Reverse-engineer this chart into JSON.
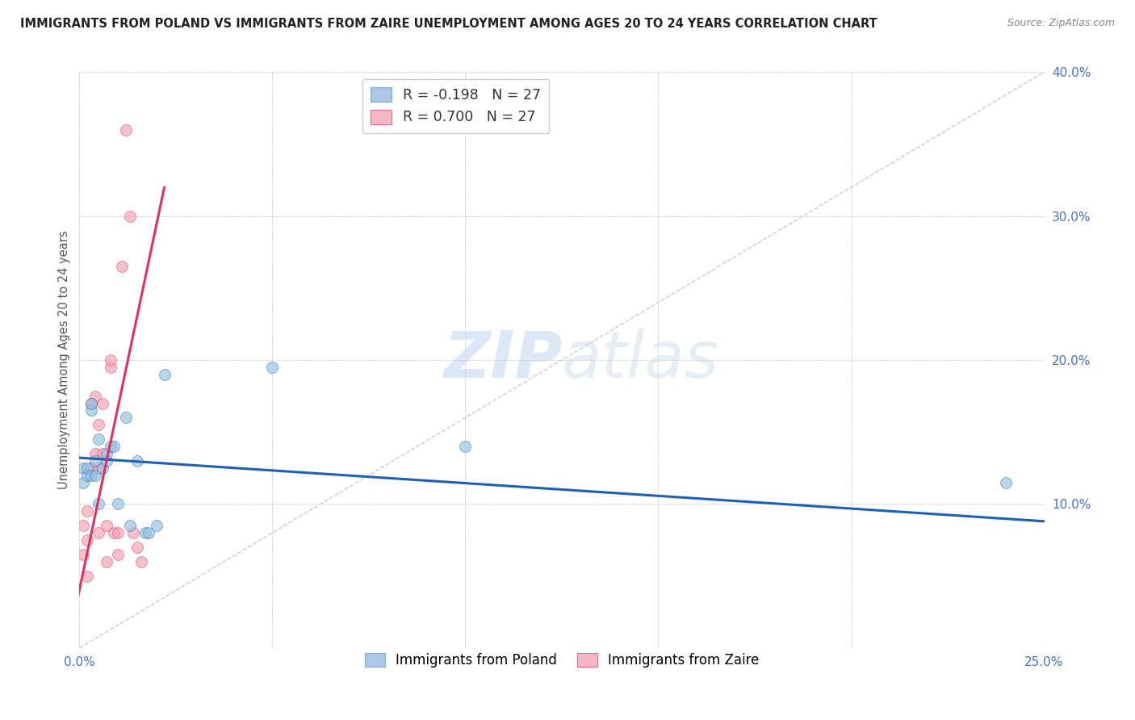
{
  "title": "IMMIGRANTS FROM POLAND VS IMMIGRANTS FROM ZAIRE UNEMPLOYMENT AMONG AGES 20 TO 24 YEARS CORRELATION CHART",
  "source": "Source: ZipAtlas.com",
  "ylabel": "Unemployment Among Ages 20 to 24 years",
  "xlim": [
    0.0,
    0.25
  ],
  "ylim": [
    0.0,
    0.4
  ],
  "xticks": [
    0.0,
    0.05,
    0.1,
    0.15,
    0.2,
    0.25
  ],
  "yticks": [
    0.0,
    0.1,
    0.2,
    0.3,
    0.4
  ],
  "legend_label1": "R = -0.198   N = 27",
  "legend_label2": "R = 0.700   N = 27",
  "legend_color1": "#aec6e8",
  "legend_color2": "#f4b8c4",
  "poland_color": "#92c0e0",
  "zaire_color": "#f4a0b0",
  "poland_line_color": "#2060b0",
  "zaire_line_color": "#e03060",
  "watermark_zip": "ZIP",
  "watermark_atlas": "atlas",
  "poland_x": [
    0.001,
    0.001,
    0.002,
    0.002,
    0.003,
    0.003,
    0.003,
    0.004,
    0.004,
    0.005,
    0.005,
    0.006,
    0.007,
    0.007,
    0.008,
    0.009,
    0.01,
    0.012,
    0.013,
    0.015,
    0.017,
    0.018,
    0.02,
    0.022,
    0.05,
    0.1,
    0.24
  ],
  "poland_y": [
    0.125,
    0.115,
    0.12,
    0.125,
    0.12,
    0.165,
    0.17,
    0.12,
    0.13,
    0.1,
    0.145,
    0.125,
    0.13,
    0.135,
    0.14,
    0.14,
    0.1,
    0.16,
    0.085,
    0.13,
    0.08,
    0.08,
    0.085,
    0.19,
    0.195,
    0.14,
    0.115
  ],
  "zaire_x": [
    0.001,
    0.001,
    0.002,
    0.002,
    0.002,
    0.003,
    0.003,
    0.004,
    0.004,
    0.005,
    0.005,
    0.005,
    0.006,
    0.006,
    0.007,
    0.007,
    0.008,
    0.008,
    0.009,
    0.01,
    0.01,
    0.011,
    0.012,
    0.013,
    0.014,
    0.015,
    0.016
  ],
  "zaire_y": [
    0.065,
    0.085,
    0.095,
    0.05,
    0.075,
    0.125,
    0.17,
    0.135,
    0.175,
    0.08,
    0.125,
    0.155,
    0.135,
    0.17,
    0.085,
    0.06,
    0.195,
    0.2,
    0.08,
    0.065,
    0.08,
    0.265,
    0.36,
    0.3,
    0.08,
    0.07,
    0.06
  ],
  "poland_marker_size": 100,
  "zaire_marker_size": 100,
  "poland_line_x": [
    -0.005,
    0.25
  ],
  "poland_line_y": [
    0.133,
    0.088
  ],
  "zaire_line_x": [
    -0.002,
    0.022
  ],
  "zaire_line_y": [
    0.015,
    0.32
  ],
  "diag_line_x": [
    0.0,
    0.25
  ],
  "diag_line_y": [
    0.0,
    0.4
  ]
}
